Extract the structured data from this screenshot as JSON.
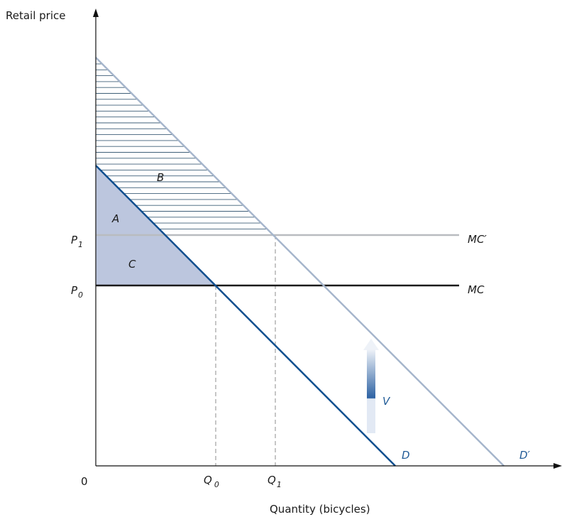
{
  "axes": {
    "y_title": "Retail price",
    "x_title": "Quantity (bicycles)",
    "origin": "0"
  },
  "ticks": {
    "p1": {
      "main": "P",
      "sub": "1"
    },
    "p0": {
      "main": "P",
      "sub": "0"
    },
    "q0": {
      "main": "Q",
      "sub": "0"
    },
    "q1": {
      "main": "Q",
      "sub": "1"
    }
  },
  "regions": {
    "a": "A",
    "b": "B",
    "c": "C"
  },
  "curves": {
    "mc_prime": "MC′",
    "mc": "MC",
    "d": "D",
    "d_prime": "D′"
  },
  "shift_arrow": {
    "label": "V"
  },
  "colors": {
    "demand": "#0f4f8f",
    "demand_shifted": "#a6b6cc",
    "mc": "#1a1a1a",
    "mc_shifted": "#b9bcc0",
    "surplus_fill": "#bcc6de",
    "hatch": "#3f5f78",
    "arrow_top": "#e8edf6",
    "arrow_mid": "#2d62a3"
  }
}
